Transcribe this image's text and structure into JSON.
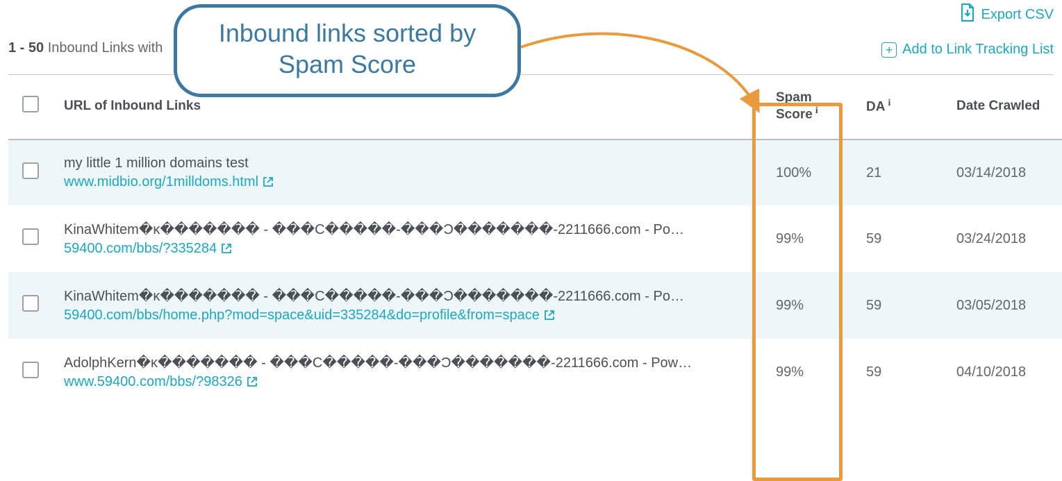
{
  "colors": {
    "accent": "#1da7c0",
    "callout_border": "#3b78a2",
    "callout_text": "#3b78a2",
    "highlight_border": "#e89a3d",
    "arrow": "#e89a3d",
    "row_alt_bg": "#eef7f8",
    "text_primary": "#4a5055",
    "text_secondary": "#5f666c",
    "divider": "#b9bdc0"
  },
  "actions": {
    "export_csv": "Export CSV",
    "add_tracking": "Add to Link Tracking List"
  },
  "range": {
    "prefix_bold": "1 - 50",
    "suffix": " Inbound Links with"
  },
  "callout": {
    "text": "Inbound links sorted by Spam Score"
  },
  "columns": {
    "url": "URL of Inbound Links",
    "spam": "Spam Score",
    "da": "DA",
    "date": "Date Crawled",
    "info_glyph": "i"
  },
  "rows": [
    {
      "title": "my little 1 million domains test",
      "url": "www.midbio.org/1milldoms.html",
      "spam": "100%",
      "da": "21",
      "date": "03/14/2018"
    },
    {
      "title": "KinaWhitem�κ������� - ���C�����-���Ͻ�������-2211666.com - Po…",
      "url": "59400.com/bbs/?335284",
      "spam": "99%",
      "da": "59",
      "date": "03/24/2018"
    },
    {
      "title": "KinaWhitem�κ������� - ���C�����-���Ͻ�������-2211666.com - Po…",
      "url": "59400.com/bbs/home.php?mod=space&uid=335284&do=profile&from=space",
      "spam": "99%",
      "da": "59",
      "date": "03/05/2018"
    },
    {
      "title": "AdolphKern�κ������� - ���C�����-���Ͻ�������-2211666.com - Pow…",
      "url": "www.59400.com/bbs/?98326",
      "spam": "99%",
      "da": "59",
      "date": "04/10/2018"
    }
  ]
}
